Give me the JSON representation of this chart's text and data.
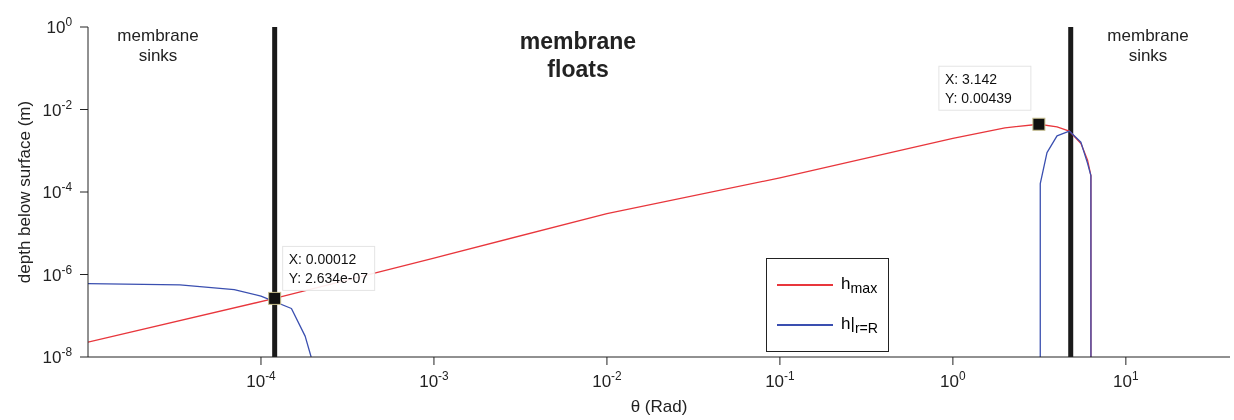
{
  "chart_data": {
    "type": "line",
    "xlabel": "θ (Rad)",
    "ylabel": "depth below surface (m)",
    "log": "xy",
    "xlim": [
      1e-05,
      40
    ],
    "ylim": [
      1e-08,
      1
    ],
    "xticks": [
      {
        "value": 0.0001,
        "label": "10$^{-4}$"
      },
      {
        "value": 0.001,
        "label": "10$^{-3}$"
      },
      {
        "value": 0.01,
        "label": "10$^{-2}$"
      },
      {
        "value": 0.1,
        "label": "10$^{-1}$"
      },
      {
        "value": 1,
        "label": "10$^{0}$"
      },
      {
        "value": 10,
        "label": "10$^{1}$"
      }
    ],
    "yticks": [
      {
        "value": 1e-08,
        "label": "10$^{-8}$"
      },
      {
        "value": 1e-06,
        "label": "10$^{-6}$"
      },
      {
        "value": 0.0001,
        "label": "10$^{-4}$"
      },
      {
        "value": 0.01,
        "label": "10$^{-2}$"
      },
      {
        "value": 1,
        "label": "10$^{0}$"
      }
    ],
    "series": [
      {
        "name": "h$_{max}$",
        "color": "#e8363c",
        "x": [
          1e-05,
          0.00012,
          0.001,
          0.01,
          0.1,
          1,
          2,
          3.142,
          4,
          4.71,
          5.5,
          6,
          6.28,
          6.283
        ],
        "values": [
          2.3e-08,
          2.634e-07,
          2.5e-06,
          3e-05,
          0.00022,
          0.002,
          0.0036,
          0.00439,
          0.0038,
          0.003,
          0.0015,
          0.0006,
          0.00025,
          1e-08
        ]
      },
      {
        "name": "h|$_{r=R}$",
        "color": "#3a4fb0",
        "x": [
          1e-05,
          3.4e-05,
          7e-05,
          0.0001,
          0.00015,
          0.00018,
          0.000195,
          1,
          3.2,
          3.2,
          3.5,
          4,
          4.71,
          5.5,
          6,
          6.28,
          6.283
        ],
        "values": [
          6e-07,
          5.6e-07,
          4.3e-07,
          3e-07,
          1.5e-07,
          3.2e-08,
          1e-08,
          null,
          1e-08,
          0.00016,
          0.0009,
          0.0023,
          0.003,
          0.0016,
          0.0005,
          0.00025,
          1e-08
        ]
      }
    ],
    "ref_lines": [
      {
        "axis": "x",
        "value": 0.00012,
        "color": "#1a1a1a"
      },
      {
        "axis": "x",
        "value": 4.8,
        "color": "#1a1a1a"
      }
    ],
    "annotations": [
      "membrane sinks",
      "membrane floats",
      "membrane sinks",
      {
        "text": "X: 0.00012\nY: 2.634e-07",
        "x": 0.00012,
        "y": 2.634e-07
      },
      {
        "text": "X: 3.142\nY: 0.00439",
        "x": 3.142,
        "y": 0.00439
      }
    ],
    "legend": "bottom",
    "marker": "none",
    "line_style": "solid"
  }
}
